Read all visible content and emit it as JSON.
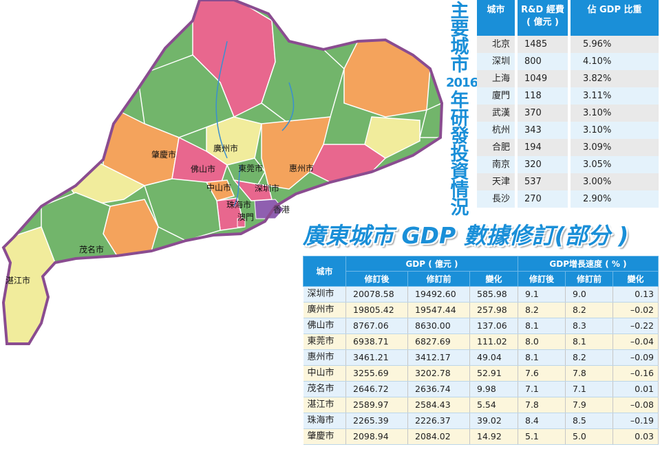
{
  "map": {
    "colors": {
      "pink": "#e8678e",
      "green": "#72b56b",
      "orange": "#f4a35c",
      "yellow": "#f1ec9c",
      "purple": "#8f5fb0",
      "border": "#8a4c90",
      "water": "#3a8fd0"
    },
    "labels": [
      "肇慶市",
      "廣州市",
      "佛山市",
      "東莞市",
      "惠州市",
      "中山市",
      "深圳市",
      "珠海市",
      "香港",
      "澳門",
      "茂名市",
      "湛江市"
    ]
  },
  "rd_table": {
    "title_chars": [
      "主",
      "要",
      "城",
      "市",
      "2016",
      "年",
      "研",
      "發",
      "投",
      "資",
      "情",
      "況"
    ],
    "headers": [
      "城市",
      "R&D 經費\n( 億元 )",
      "佔 GDP 比重"
    ],
    "rows": [
      [
        "北京",
        "1485",
        "5.96%"
      ],
      [
        "深圳",
        "800",
        "4.10%"
      ],
      [
        "上海",
        "1049",
        "3.82%"
      ],
      [
        "廈門",
        "118",
        "3.11%"
      ],
      [
        "武漢",
        "370",
        "3.10%"
      ],
      [
        "杭州",
        "343",
        "3.10%"
      ],
      [
        "合肥",
        "194",
        "3.09%"
      ],
      [
        "南京",
        "320",
        "3.05%"
      ],
      [
        "天津",
        "537",
        "3.00%"
      ],
      [
        "長沙",
        "270",
        "2.90%"
      ]
    ],
    "header_color": "#1a8fd8"
  },
  "gdp_table": {
    "title": "廣東城市 GDP 數據修訂(部分 )",
    "header_city": "城市",
    "group_gdp": "GDP ( 億元 )",
    "group_growth": "GDP增長速度 ( % )",
    "subheaders": [
      "修訂後",
      "修訂前",
      "變化",
      "修訂後",
      "修訂前",
      "變化"
    ],
    "rows": [
      [
        "深圳市",
        "20078.58",
        "19492.60",
        "585.98",
        "9.1",
        "9.0",
        "0.13"
      ],
      [
        "廣州市",
        "19805.42",
        "19547.44",
        "257.98",
        "8.2",
        "8.2",
        "–0.02"
      ],
      [
        "佛山市",
        "8767.06",
        "8630.00",
        "137.06",
        "8.1",
        "8.3",
        "–0.22"
      ],
      [
        "東莞市",
        "6938.71",
        "6827.69",
        "111.02",
        "8.0",
        "8.1",
        "–0.04"
      ],
      [
        "惠州市",
        "3461.21",
        "3412.17",
        "49.04",
        "8.1",
        "8.2",
        "–0.09"
      ],
      [
        "中山市",
        "3255.69",
        "3202.78",
        "52.91",
        "7.6",
        "7.8",
        "–0.16"
      ],
      [
        "茂名市",
        "2646.72",
        "2636.74",
        "9.98",
        "7.1",
        "7.1",
        "0.01"
      ],
      [
        "湛江市",
        "2589.97",
        "2584.43",
        "5.54",
        "7.8",
        "7.9",
        "–0.08"
      ],
      [
        "珠海市",
        "2265.39",
        "2226.37",
        "39.02",
        "8.4",
        "8.5",
        "–0.19"
      ],
      [
        "肇慶市",
        "2098.94",
        "2084.02",
        "14.92",
        "5.1",
        "5.0",
        "0.03"
      ]
    ]
  }
}
